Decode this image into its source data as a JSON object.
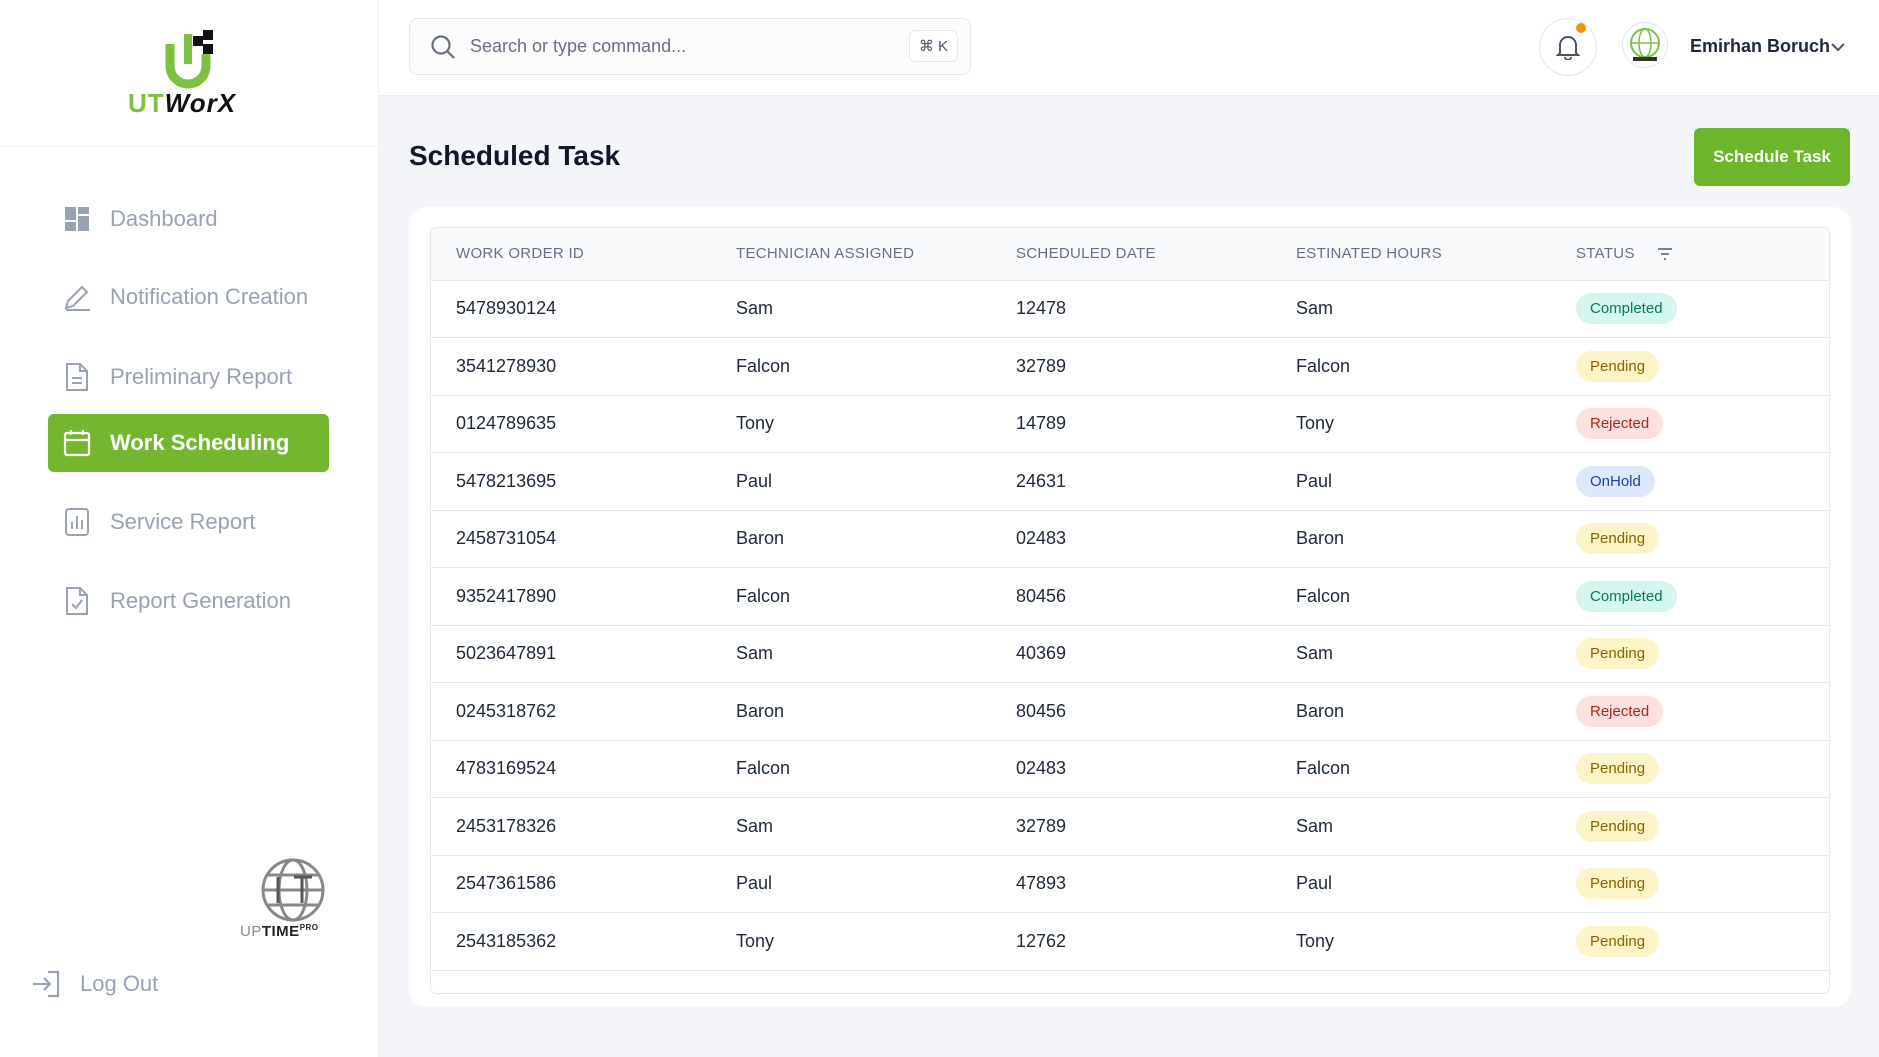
{
  "brand": {
    "logo_ut": "UT",
    "logo_worx": "WorX",
    "footer_logo_up": "UP",
    "footer_logo_time": "TIME",
    "footer_logo_pro": "PRO"
  },
  "colors": {
    "accent": "#6db62b",
    "completed": "#067a66",
    "pending": "#8a6400",
    "rejected": "#b42318",
    "onhold": "#1e40af"
  },
  "sidebar": {
    "items": [
      {
        "label": "Dashboard",
        "icon": "dashboard-icon"
      },
      {
        "label": "Notification Creation",
        "icon": "pencil-icon"
      },
      {
        "label": "Preliminary Report",
        "icon": "document-icon"
      },
      {
        "label": "Work Scheduling",
        "icon": "calendar-icon",
        "active": true
      },
      {
        "label": "Service Report",
        "icon": "bar-chart-icon"
      },
      {
        "label": "Report Generation",
        "icon": "document-check-icon"
      }
    ],
    "logout": "Log Out"
  },
  "topbar": {
    "search_placeholder": "Search or type command...",
    "shortcut": "⌘ K",
    "user_name": "Emirhan Boruch"
  },
  "main": {
    "title": "Scheduled Task",
    "schedule_button": "Schedule Task"
  },
  "table": {
    "headers": [
      "WORK ORDER ID",
      "TECHNICIAN ASSIGNED",
      "SCHEDULED DATE",
      "ESTINATED HOURS",
      "STATUS"
    ],
    "rows": [
      {
        "id": "5478930124",
        "tech": "Sam",
        "date": "12478",
        "hours": "Sam",
        "status": "Completed",
        "cls": "st-completed"
      },
      {
        "id": "3541278930",
        "tech": "Falcon",
        "date": "32789",
        "hours": "Falcon",
        "status": "Pending",
        "cls": "st-pending"
      },
      {
        "id": "0124789635",
        "tech": "Tony",
        "date": "14789",
        "hours": "Tony",
        "status": "Rejected",
        "cls": "st-rejected"
      },
      {
        "id": "5478213695",
        "tech": "Paul",
        "date": "24631",
        "hours": "Paul",
        "status": "OnHold",
        "cls": "st-onhold"
      },
      {
        "id": "2458731054",
        "tech": "Baron",
        "date": "02483",
        "hours": "Baron",
        "status": "Pending",
        "cls": "st-pending"
      },
      {
        "id": "9352417890",
        "tech": "Falcon",
        "date": "80456",
        "hours": "Falcon",
        "status": "Completed",
        "cls": "st-completed"
      },
      {
        "id": "5023647891",
        "tech": "Sam",
        "date": "40369",
        "hours": "Sam",
        "status": "Pending",
        "cls": "st-pending"
      },
      {
        "id": "0245318762",
        "tech": "Baron",
        "date": "80456",
        "hours": "Baron",
        "status": "Rejected",
        "cls": "st-rejected"
      },
      {
        "id": "4783169524",
        "tech": "Falcon",
        "date": "02483",
        "hours": "Falcon",
        "status": "Pending",
        "cls": "st-pending"
      },
      {
        "id": "2453178326",
        "tech": "Sam",
        "date": "32789",
        "hours": "Sam",
        "status": "Pending",
        "cls": "st-pending"
      },
      {
        "id": "2547361586",
        "tech": "Paul",
        "date": "47893",
        "hours": "Paul",
        "status": "Pending",
        "cls": "st-pending"
      },
      {
        "id": "2543185362",
        "tech": "Tony",
        "date": "12762",
        "hours": "Tony",
        "status": "Pending",
        "cls": "st-pending"
      }
    ]
  }
}
